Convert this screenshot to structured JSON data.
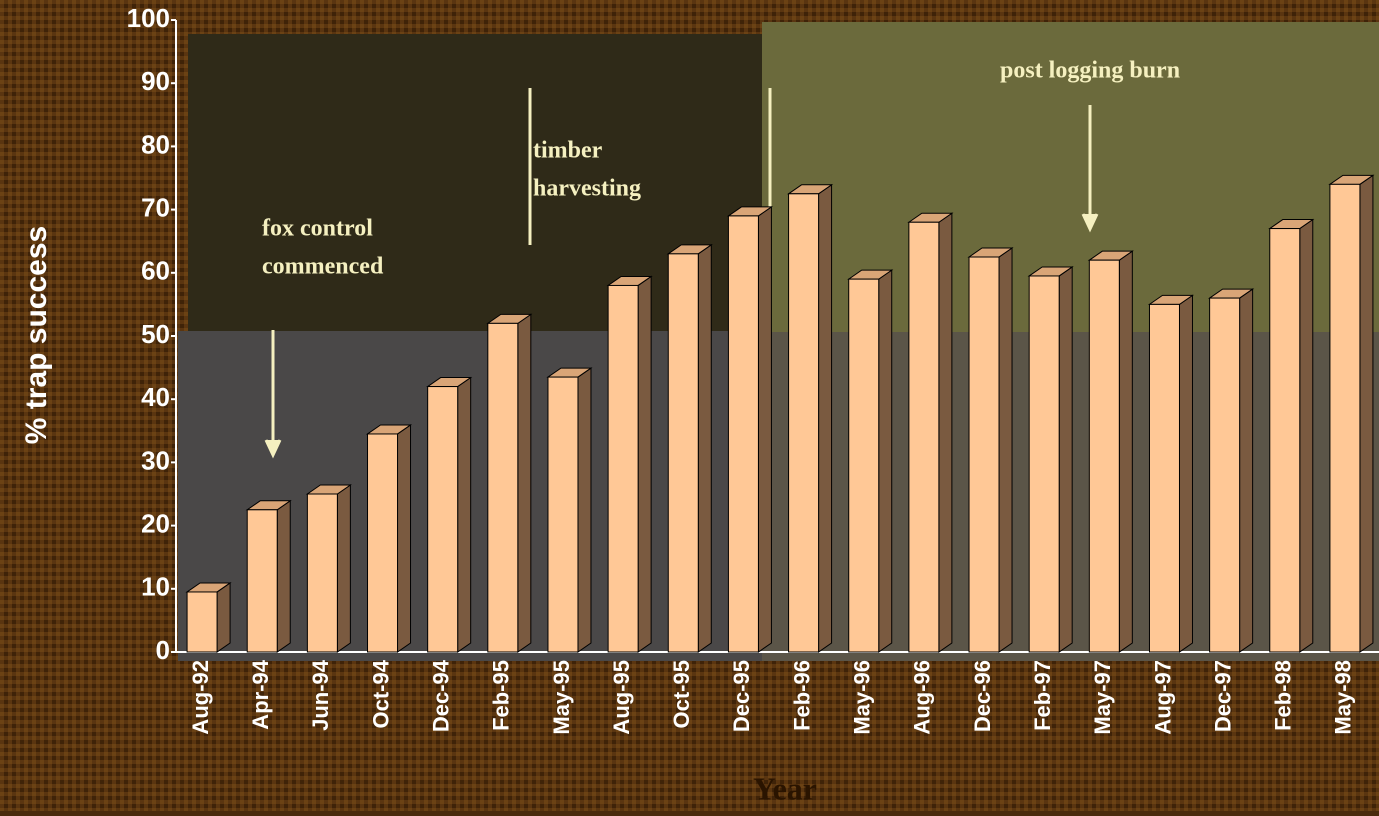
{
  "chart_data": {
    "type": "bar3d",
    "y_label": "% trap success",
    "x_label": "Year",
    "categories": [
      "Aug-92",
      "Apr-94",
      "Jun-94",
      "Oct-94",
      "Dec-94",
      "Feb-95",
      "May-95",
      "Aug-95",
      "Oct-95",
      "Dec-95",
      "Feb-96",
      "May-96",
      "Aug-96",
      "Dec-96",
      "Feb-97",
      "May-97",
      "Aug-97",
      "Dec-97",
      "Feb-98",
      "May-98"
    ],
    "values": [
      9.5,
      22.5,
      25,
      34.5,
      42,
      52,
      43.5,
      58,
      63,
      69,
      72.5,
      59,
      68,
      62.5,
      59.5,
      62,
      55,
      56,
      67,
      74
    ],
    "color": "#ffc896",
    "ylim": [
      0,
      100
    ],
    "yticks": [
      0,
      10,
      20,
      30,
      40,
      50,
      60,
      70,
      80,
      90,
      100
    ],
    "grid": false,
    "annotations": [
      {
        "lines": [
          "fox control",
          "commenced"
        ]
      },
      {
        "lines": [
          "timber",
          "harvesting"
        ]
      },
      {
        "lines": [
          "post logging burn"
        ]
      }
    ]
  }
}
